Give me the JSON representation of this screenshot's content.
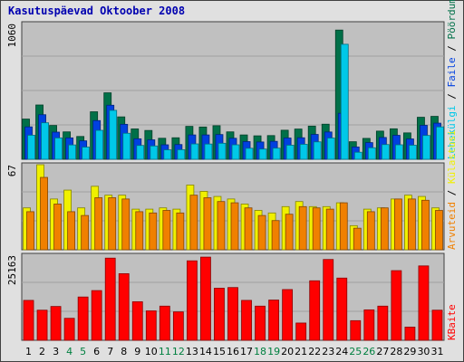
{
  "chart_data": {
    "type": "bar",
    "title": "Kasutuspäevad Oktoober 2008",
    "categories": [
      "1",
      "2",
      "3",
      "4",
      "5",
      "6",
      "7",
      "8",
      "9",
      "10",
      "11",
      "12",
      "13",
      "14",
      "15",
      "16",
      "17",
      "18",
      "19",
      "20",
      "21",
      "22",
      "23",
      "24",
      "25",
      "26",
      "27",
      "28",
      "29",
      "30",
      "31"
    ],
    "weekend_days": [
      "4",
      "5",
      "11",
      "12",
      "18",
      "19",
      "25",
      "26"
    ],
    "colors": {
      "plot_bg": "#c0c0c0",
      "gridline": "#a0a0a0",
      "frame_bg": "#e0e0e0",
      "title": "#0000b0",
      "weekday_tick": "#000000",
      "weekend_tick": "#008040",
      "visits": "#007048",
      "pages": "#0040e0",
      "files": "#00c8e8",
      "unique_visitors": "#f0f000",
      "hits": "#f08000",
      "kbytes": "#ff0000"
    },
    "panels": [
      {
        "max_label": "1060",
        "ylim": [
          0,
          1060
        ],
        "series": [
          {
            "name": "Pöördumisi",
            "color": "#007048",
            "values": [
              314,
              424,
              264,
              214,
              178,
              371,
              519,
              331,
              237,
              225,
              164,
              168,
              257,
              252,
              262,
              214,
              190,
              183,
              185,
              227,
              236,
              259,
              274,
              1009,
              137,
              163,
              220,
              238,
              206,
              328,
              335
            ]
          },
          {
            "name": "Faile",
            "color": "#0040e0",
            "values": [
              253,
              348,
              212,
              167,
              144,
              302,
              422,
              273,
              160,
              152,
              113,
              115,
              190,
              190,
              193,
              164,
              138,
              135,
              140,
              166,
              168,
              194,
              213,
              359,
              96,
              130,
              170,
              187,
              159,
              265,
              282
            ]
          },
          {
            "name": "Lehekülgi",
            "color": "#00c8e8",
            "values": [
              188,
              285,
              167,
              112,
              95,
              226,
              382,
              203,
              108,
              104,
              74,
              75,
              120,
              119,
              125,
              113,
              86,
              80,
              87,
              110,
              117,
              136,
              166,
              898,
              55,
              90,
              115,
              113,
              110,
              186,
              253
            ]
          }
        ]
      },
      {
        "max_label": "67",
        "ylim": [
          0,
          67
        ],
        "series": [
          {
            "name": "Külastusi",
            "color": "#f0f000",
            "values": [
              33,
              67,
              40,
              47,
              33,
              50,
              43,
              43,
              32,
              32,
              33,
              32,
              51,
              46,
              42,
              40,
              36,
              31,
              29,
              34,
              38,
              34,
              34,
              37,
              19,
              32,
              33,
              40,
              43,
              42,
              33
            ]
          },
          {
            "name": "Arvuteid",
            "color": "#f08000",
            "values": [
              30,
              57,
              36,
              30,
              27,
              41,
              41,
              40,
              30,
              29,
              31,
              29,
              43,
              41,
              38,
              37,
              33,
              27,
              23,
              28,
              34,
              33,
              32,
              37,
              17,
              30,
              33,
              40,
              40,
              39,
              31
            ]
          }
        ]
      },
      {
        "max_label": "25163",
        "ylim": [
          0,
          25163
        ],
        "series": [
          {
            "name": "KBaite",
            "color": "#ff0000",
            "values": [
              11800,
              8900,
              10000,
              6500,
              12800,
              14700,
              24300,
              19700,
              11400,
              8700,
              10100,
              8400,
              23500,
              24600,
              15400,
              15600,
              11800,
              10100,
              11900,
              15000,
              5100,
              17600,
              23900,
              18400,
              5800,
              9000,
              10100,
              20600,
              3900,
              22000,
              8900
            ]
          }
        ]
      }
    ],
    "legend_labels": [
      "Pöördumisi",
      "Faile",
      "Lehekülgi",
      "Külastusi",
      "Arvuteid",
      "KBaite"
    ]
  }
}
